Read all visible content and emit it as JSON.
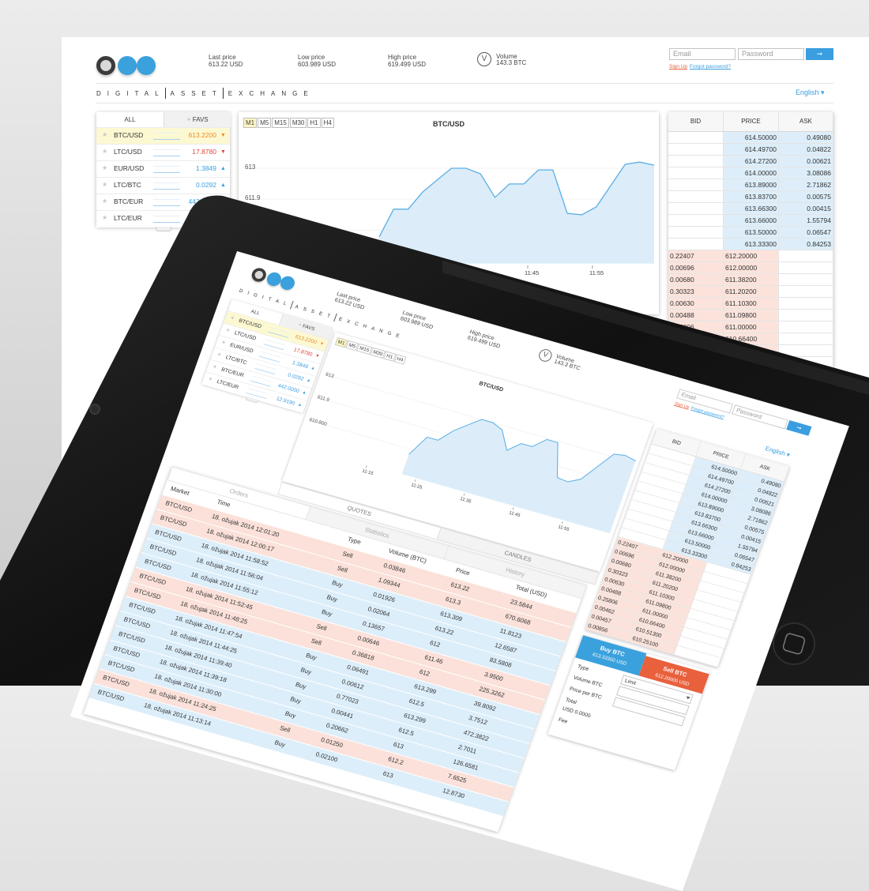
{
  "header": {
    "last_price": {
      "label": "Last price",
      "value": "613.22 USD"
    },
    "low_price": {
      "label": "Low price",
      "value": "603.989 USD"
    },
    "high_price": {
      "label": "High price",
      "value": "619.499 USD"
    },
    "volume": {
      "icon": "V",
      "label": "Volume",
      "value": "143.3 BTC"
    }
  },
  "login": {
    "email": "Email",
    "password": "Password",
    "submit": "➞",
    "sign_up": "Sign Up",
    "forgot_password": "Forgot password?"
  },
  "brand": [
    "DIGITAL",
    "ASSET",
    "EXCHANGE"
  ],
  "language": "English ▾",
  "markets": {
    "tabs": [
      "ALL",
      "FAVS"
    ],
    "star": "★",
    "rows": [
      {
        "pair": "BTC/USD",
        "price": "613.2200",
        "trend": "▼",
        "color": "#ef8a2a"
      },
      {
        "pair": "LTC/USD",
        "price": "17.8780",
        "trend": "▼",
        "color": "#e0473b"
      },
      {
        "pair": "EUR/USD",
        "price": "1.3849",
        "trend": "▲",
        "color": "#3a9ee0"
      },
      {
        "pair": "LTC/BTC",
        "price": "0.0292",
        "trend": "▲",
        "color": "#3a9ee0"
      },
      {
        "pair": "BTC/EUR",
        "price": "442.0000",
        "trend": "▲",
        "color": "#3a9ee0"
      },
      {
        "pair": "LTC/EUR",
        "price": "12.9190",
        "trend": "▲",
        "color": "#3a9ee0"
      }
    ]
  },
  "chart_data": {
    "type": "line",
    "title": "BTC/USD",
    "timeframes": [
      "M1",
      "M5",
      "M15",
      "M30",
      "H1",
      "H4"
    ],
    "ylim": [
      609.6,
      613.8
    ],
    "yticks": [
      613,
      611.9,
      {
        "value": 610.8,
        "label": "610.800"
      }
    ],
    "xticks": [
      "11:15",
      "11:25",
      "11:35",
      "11:45",
      "11:55"
    ],
    "values": [
      610.55,
      611.54,
      611.54,
      612.15,
      612.58,
      613.0,
      613.0,
      612.8,
      611.96,
      612.44,
      612.44,
      612.94,
      612.94,
      611.39,
      611.34,
      611.62,
      612.38,
      613.14,
      613.22,
      613.11
    ],
    "color": "#5aaee6",
    "fill": "#d3e8f7"
  },
  "chart_tabs": [
    "QUOTES",
    "CANDLES"
  ],
  "order_book": {
    "columns": [
      "BID",
      "PRICE",
      "ASK"
    ],
    "asks": [
      [
        "614.50000",
        "0.49080"
      ],
      [
        "614.49700",
        "0.04822"
      ],
      [
        "614.27200",
        "0.00621"
      ],
      [
        "614.00000",
        "3.08086"
      ],
      [
        "613.89000",
        "2.71862"
      ],
      [
        "613.83700",
        "0.00575"
      ],
      [
        "613.66300",
        "0.00415"
      ],
      [
        "613.66000",
        "1.55794"
      ],
      [
        "613.50000",
        "0.06547"
      ],
      [
        "613.33300",
        "0.84253"
      ]
    ],
    "bids": [
      [
        "0.22407",
        "612.20000"
      ],
      [
        "0.00696",
        "612.00000"
      ],
      [
        "0.00680",
        "611.38200"
      ],
      [
        "0.30323",
        "611.20200"
      ],
      [
        "0.00630",
        "611.10300"
      ],
      [
        "0.00488",
        "611.09800"
      ],
      [
        "0.25806",
        "611.00000"
      ],
      [
        "0.00462",
        "610.66400"
      ],
      [
        "0.00457",
        "610.51300"
      ],
      [
        "0.00856",
        "610.25100"
      ]
    ]
  },
  "trades": {
    "tabs": [
      "Orders",
      "Statistics",
      "History"
    ],
    "columns": [
      "Market",
      "Time",
      "Type",
      "Volume (BTC)",
      "Price",
      "Total (USD)"
    ],
    "row_colors": {
      "Sell": "#fbe1d9",
      "Buy": "#dceefa"
    },
    "rows": [
      [
        "BTC/USD",
        "18. ožujak 2014 12:01:20",
        "Sell",
        "0.03846",
        "613.22",
        "23.5844"
      ],
      [
        "BTC/USD",
        "18. ožujak 2014 12:00:17",
        "Sell",
        "1.09344",
        "613.3",
        "670.6068"
      ],
      [
        "BTC/USD",
        "18. ožujak 2014 11:58:52",
        "Buy",
        "0.01926",
        "613.309",
        "11.8123"
      ],
      [
        "BTC/USD",
        "18. ožujak 2014 11:56:04",
        "Buy",
        "0.02064",
        "613.22",
        "12.6587"
      ],
      [
        "BTC/USD",
        "18. ožujak 2014 11:55:12",
        "Buy",
        "0.13657",
        "612",
        "83.5808"
      ],
      [
        "BTC/USD",
        "18. ožujak 2014 11:52:45",
        "Sell",
        "0.00646",
        "611.46",
        "3.9500"
      ],
      [
        "BTC/USD",
        "18. ožujak 2014 11:48:25",
        "Sell",
        "0.36818",
        "612",
        "225.3262"
      ],
      [
        "BTC/USD",
        "18. ožujak 2014 11:47:54",
        "Buy",
        "0.06491",
        "613.299",
        "39.8092"
      ],
      [
        "BTC/USD",
        "18. ožujak 2014 11:44:25",
        "Buy",
        "0.00612",
        "612.5",
        "3.7512"
      ],
      [
        "BTC/USD",
        "18. ožujak 2014 11:39:40",
        "Buy",
        "0.77023",
        "613.299",
        "472.3822"
      ],
      [
        "BTC/USD",
        "18. ožujak 2014 11:39:18",
        "Buy",
        "0.00441",
        "612.5",
        "2.7011"
      ],
      [
        "BTC/USD",
        "18. ožujak 2014 11:30:00",
        "Buy",
        "0.20662",
        "613",
        "126.6581"
      ],
      [
        "BTC/USD",
        "18. ožujak 2014 11:24:25",
        "Sell",
        "0.01250",
        "612.2",
        "7.6525"
      ],
      [
        "BTC/USD",
        "18. ožujak 2014 11:13:14",
        "Buy",
        "0.02100",
        "613",
        "12.8730"
      ]
    ]
  },
  "trade_form": {
    "buy": {
      "title": "Buy BTC",
      "price": "613.33300 USD"
    },
    "sell": {
      "title": "Sell BTC",
      "price": "612.20000 USD"
    },
    "fields": [
      "Type",
      "Volume BTC",
      "Price per BTC",
      "Total",
      "Fee"
    ],
    "type_value": "Limit",
    "total_value": "USD 0.0000"
  }
}
